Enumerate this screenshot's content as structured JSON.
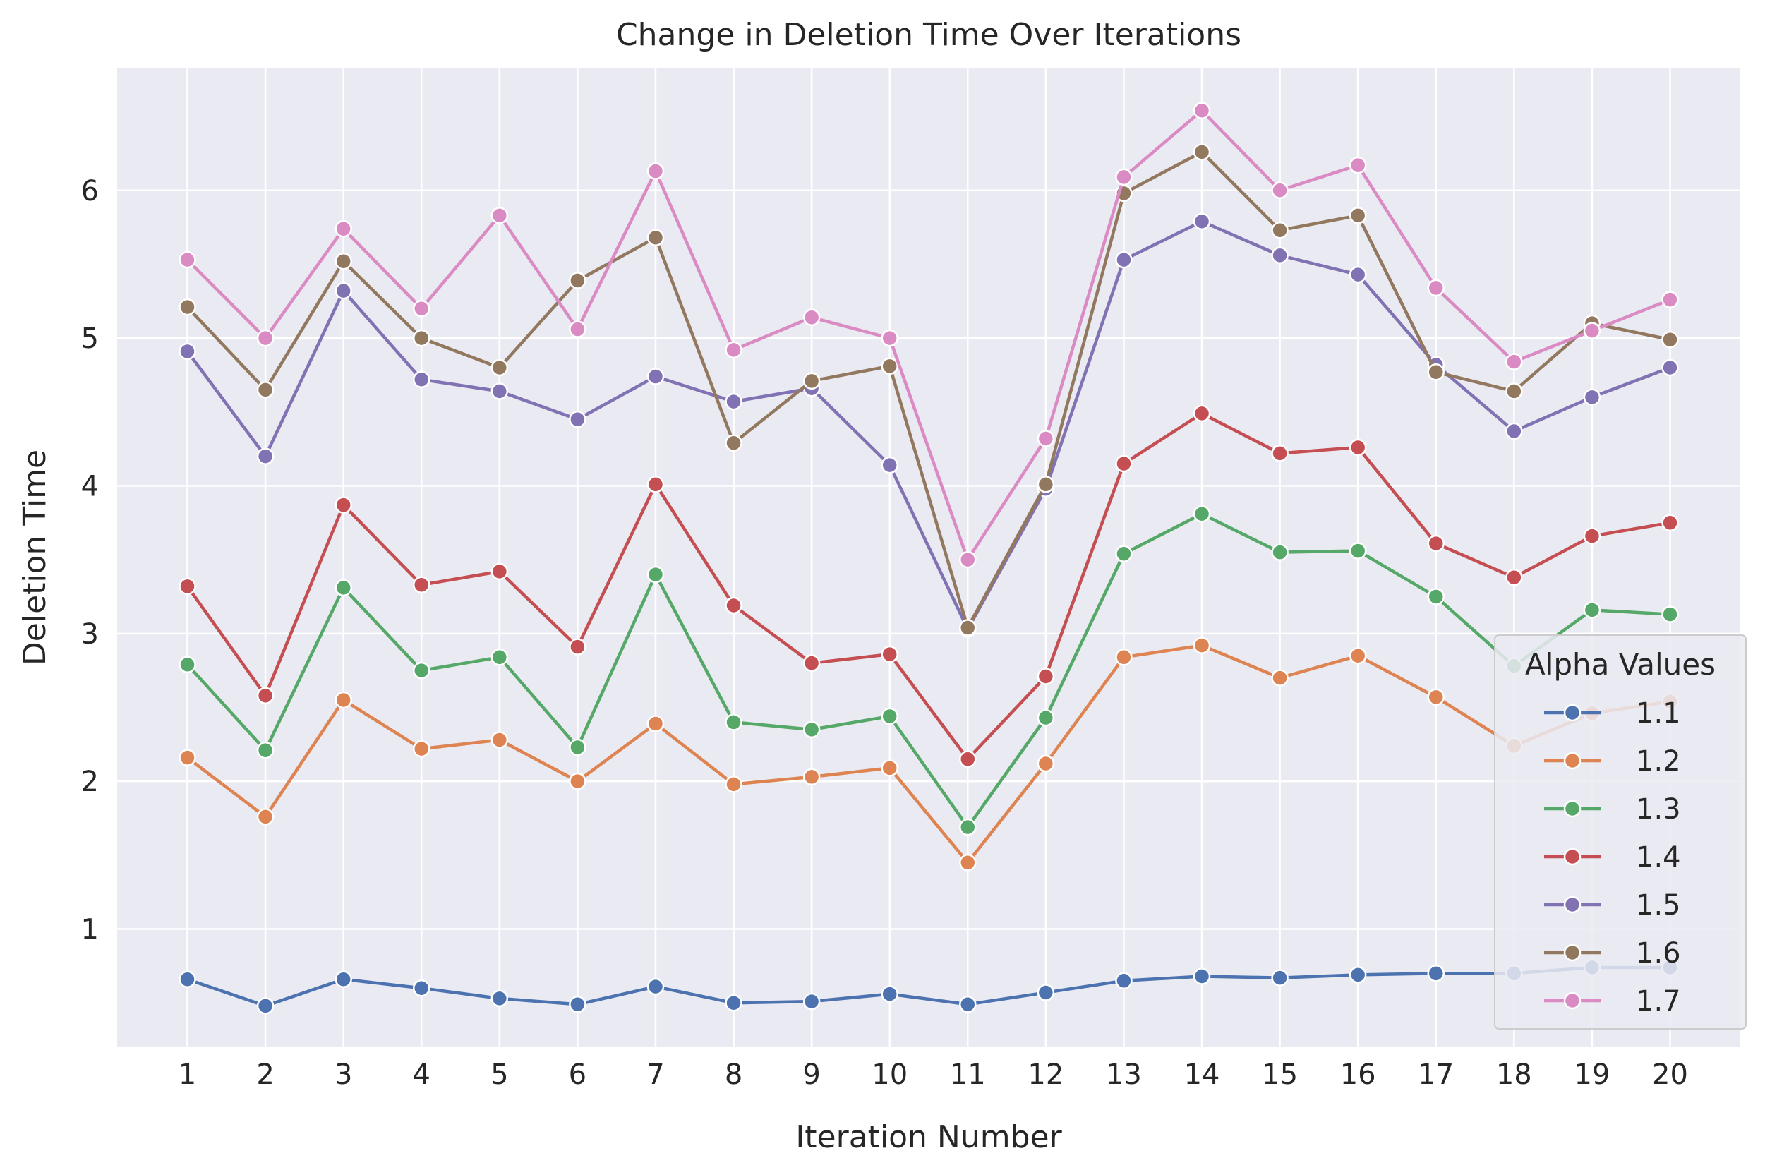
{
  "chart_data": {
    "type": "line",
    "title": "Change in Deletion Time Over Iterations",
    "xlabel": "Iteration Number",
    "ylabel": "Deletion Time",
    "x": [
      1,
      2,
      3,
      4,
      5,
      6,
      7,
      8,
      9,
      10,
      11,
      12,
      13,
      14,
      15,
      16,
      17,
      18,
      19,
      20
    ],
    "xticks": [
      "1",
      "2",
      "3",
      "4",
      "5",
      "6",
      "7",
      "8",
      "9",
      "10",
      "11",
      "12",
      "13",
      "14",
      "15",
      "16",
      "17",
      "18",
      "19",
      "20"
    ],
    "xlim": [
      0.1,
      20.9
    ],
    "yticks": [
      1,
      2,
      3,
      4,
      5,
      6
    ],
    "ylim": [
      0.2,
      6.83
    ],
    "grid": true,
    "legend": {
      "title": "Alpha Values",
      "position": "lower-right"
    },
    "series": [
      {
        "name": "1.1",
        "color": "#4c72b0",
        "values": [
          0.66,
          0.48,
          0.66,
          0.6,
          0.53,
          0.49,
          0.61,
          0.5,
          0.51,
          0.56,
          0.49,
          0.57,
          0.65,
          0.68,
          0.67,
          0.69,
          0.7,
          0.7,
          0.74,
          0.74
        ]
      },
      {
        "name": "1.2",
        "color": "#dd8452",
        "values": [
          2.16,
          1.76,
          2.55,
          2.22,
          2.28,
          2.0,
          2.39,
          1.98,
          2.03,
          2.09,
          1.45,
          2.12,
          2.84,
          2.92,
          2.7,
          2.85,
          2.57,
          2.24,
          2.46,
          2.54
        ]
      },
      {
        "name": "1.3",
        "color": "#55a868",
        "values": [
          2.79,
          2.21,
          3.31,
          2.75,
          2.84,
          2.23,
          3.4,
          2.4,
          2.35,
          2.44,
          1.69,
          2.43,
          3.54,
          3.81,
          3.55,
          3.56,
          3.25,
          2.78,
          3.16,
          3.13
        ]
      },
      {
        "name": "1.4",
        "color": "#c44e52",
        "values": [
          3.32,
          2.58,
          3.87,
          3.33,
          3.42,
          2.91,
          4.01,
          3.19,
          2.8,
          2.86,
          2.15,
          2.71,
          4.15,
          4.49,
          4.22,
          4.26,
          3.61,
          3.38,
          3.66,
          3.75
        ]
      },
      {
        "name": "1.5",
        "color": "#8172b3",
        "values": [
          4.91,
          4.2,
          5.32,
          4.72,
          4.64,
          4.45,
          4.74,
          4.57,
          4.66,
          4.14,
          3.03,
          3.98,
          5.53,
          5.79,
          5.56,
          5.43,
          4.82,
          4.37,
          4.6,
          4.8
        ]
      },
      {
        "name": "1.6",
        "color": "#937860",
        "values": [
          5.21,
          4.65,
          5.52,
          5.0,
          4.8,
          5.39,
          5.68,
          4.29,
          4.71,
          4.81,
          3.04,
          4.01,
          5.98,
          6.26,
          5.73,
          5.83,
          4.77,
          4.64,
          5.1,
          4.99
        ]
      },
      {
        "name": "1.7",
        "color": "#da8bc3",
        "values": [
          5.53,
          5.0,
          5.74,
          5.2,
          5.83,
          5.06,
          6.13,
          4.92,
          5.14,
          5.0,
          3.5,
          4.32,
          6.09,
          6.54,
          6.0,
          6.17,
          5.34,
          4.84,
          5.05,
          5.26
        ]
      }
    ]
  }
}
